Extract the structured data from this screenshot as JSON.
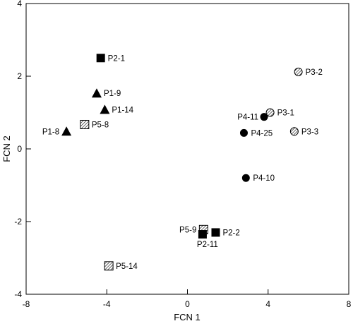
{
  "chart_data": {
    "type": "scatter",
    "title": "",
    "xlabel": "FCN 1",
    "ylabel": "FCN 2",
    "xlim": [
      -8,
      8
    ],
    "ylim": [
      -4,
      4
    ],
    "xticks": [
      "-8",
      "-4",
      "0",
      "4",
      "8"
    ],
    "yticks": [
      "-4",
      "-2",
      "0",
      "2",
      "4"
    ],
    "x_tick_values": [
      -8,
      -4,
      0,
      4,
      8
    ],
    "y_tick_values": [
      -4,
      -2,
      0,
      2,
      4
    ],
    "grid": false,
    "points": [
      {
        "label": "P2-1",
        "x": -4.3,
        "y": 2.5,
        "marker": "filled-square"
      },
      {
        "label": "P1-9",
        "x": -4.5,
        "y": 1.53,
        "marker": "filled-triangle"
      },
      {
        "label": "P1-14",
        "x": -4.1,
        "y": 1.08,
        "marker": "filled-triangle"
      },
      {
        "label": "P5-8",
        "x": -5.1,
        "y": 0.67,
        "marker": "hatched-square"
      },
      {
        "label": "P1-8",
        "x": -6.0,
        "y": 0.48,
        "marker": "filled-triangle"
      },
      {
        "label": "P3-2",
        "x": 5.5,
        "y": 2.12,
        "marker": "hatched-circle"
      },
      {
        "label": "P3-1",
        "x": 4.1,
        "y": 1.0,
        "marker": "hatched-circle"
      },
      {
        "label": "P4-11",
        "x": 3.8,
        "y": 0.88,
        "marker": "filled-circle"
      },
      {
        "label": "P3-3",
        "x": 5.3,
        "y": 0.48,
        "marker": "hatched-circle"
      },
      {
        "label": "P4-25",
        "x": 2.8,
        "y": 0.44,
        "marker": "filled-circle"
      },
      {
        "label": "P4-10",
        "x": 2.9,
        "y": -0.8,
        "marker": "filled-circle"
      },
      {
        "label": "P5-9",
        "x": 0.8,
        "y": -2.22,
        "marker": "hatched-square"
      },
      {
        "label": "P2-11",
        "x": 0.75,
        "y": -2.35,
        "marker": "filled-square"
      },
      {
        "label": "P2-2",
        "x": 1.4,
        "y": -2.3,
        "marker": "filled-square"
      },
      {
        "label": "P5-14",
        "x": -3.9,
        "y": -3.22,
        "marker": "hatched-square"
      }
    ]
  }
}
